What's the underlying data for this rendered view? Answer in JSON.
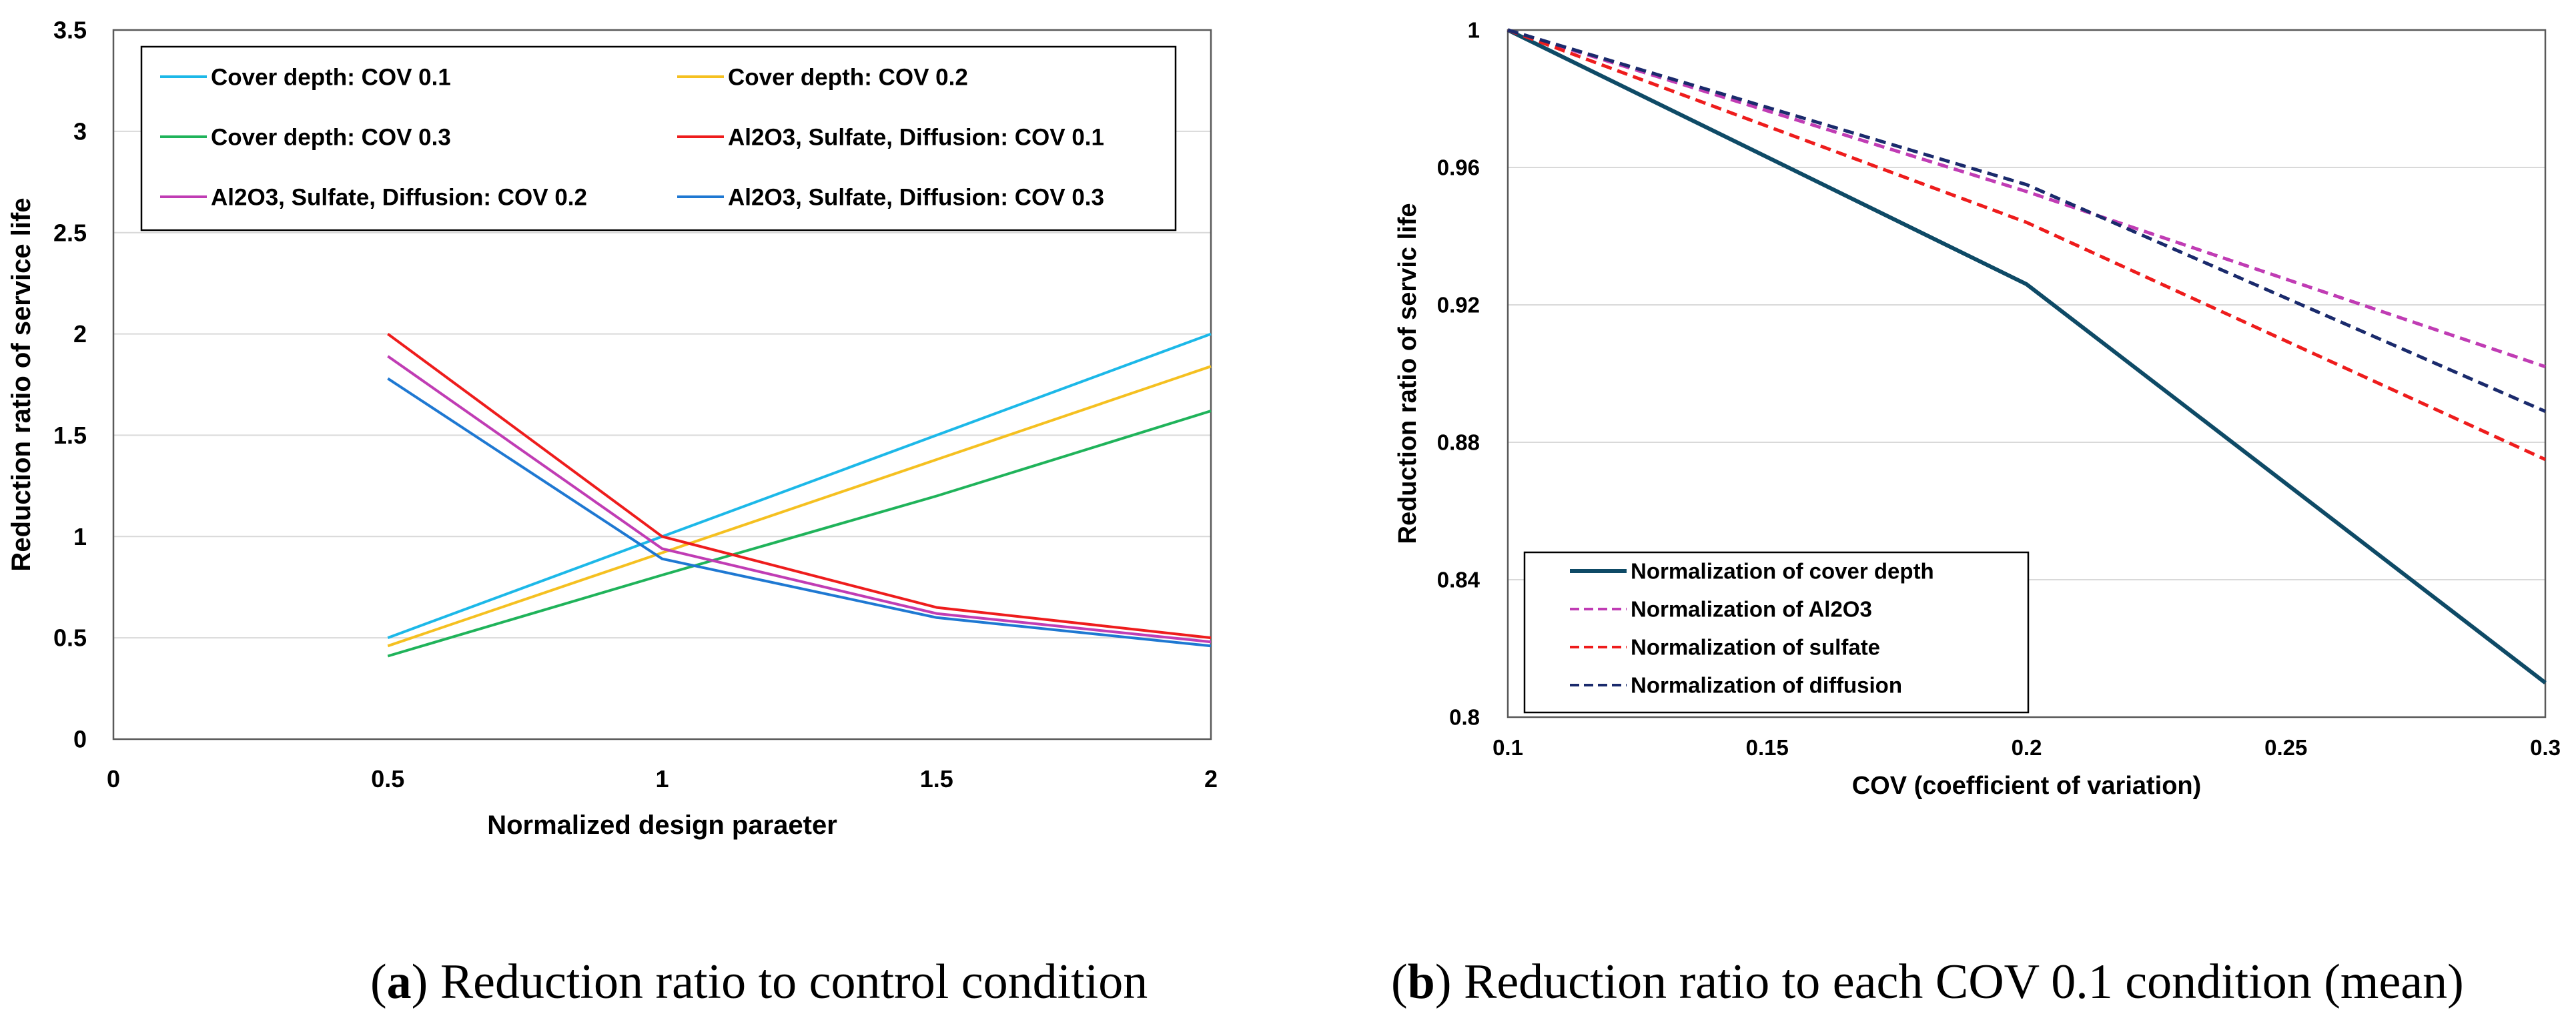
{
  "chart_data": [
    {
      "type": "line",
      "title": "",
      "xlabel": "Normalized design paraeter",
      "ylabel": "Reduction ratio of service life",
      "xlim": [
        0,
        2
      ],
      "ylim": [
        0,
        3.5
      ],
      "x_ticks": [
        "0",
        "0.5",
        "1",
        "1.5",
        "2"
      ],
      "y_ticks": [
        "0",
        "0.5",
        "1",
        "1.5",
        "2",
        "2.5",
        "3",
        "3.5"
      ],
      "grid": "horizontal",
      "legend_position": "top",
      "series": [
        {
          "name": "Cover depth: COV 0.1",
          "color": "#1CB8E8",
          "dash": "solid",
          "x": [
            0.5,
            1,
            1.5,
            2
          ],
          "values": [
            0.5,
            1.0,
            1.5,
            2.0
          ]
        },
        {
          "name": "Cover depth: COV 0.2",
          "color": "#F5C020",
          "dash": "solid",
          "x": [
            0.5,
            1,
            1.5,
            2
          ],
          "values": [
            0.46,
            0.92,
            1.38,
            1.84
          ]
        },
        {
          "name": "Cover depth: COV 0.3",
          "color": "#1FB35A",
          "dash": "solid",
          "x": [
            0.5,
            1,
            1.5,
            2
          ],
          "values": [
            0.41,
            0.81,
            1.2,
            1.62
          ]
        },
        {
          "name": "Al2O3, Sulfate, Diffusion: COV 0.1",
          "color": "#EE1C1C",
          "dash": "solid",
          "x": [
            0.5,
            1,
            1.5,
            2
          ],
          "values": [
            2.0,
            1.0,
            0.65,
            0.5
          ]
        },
        {
          "name": "Al2O3, Sulfate, Diffusion: COV 0.2",
          "color": "#C03CB4",
          "dash": "solid",
          "x": [
            0.5,
            1,
            1.5,
            2
          ],
          "values": [
            1.89,
            0.94,
            0.62,
            0.48
          ]
        },
        {
          "name": "Al2O3, Sulfate, Diffusion: COV 0.3",
          "color": "#1E78D2",
          "dash": "solid",
          "x": [
            0.5,
            1,
            1.5,
            2
          ],
          "values": [
            1.78,
            0.89,
            0.6,
            0.46
          ]
        }
      ]
    },
    {
      "type": "line",
      "title": "",
      "xlabel": "COV (coefficient of variation)",
      "ylabel": "Reduction ratio of servic life",
      "xlim": [
        0.1,
        0.3
      ],
      "ylim": [
        0.8,
        1
      ],
      "x_ticks": [
        "0.1",
        "0.15",
        "0.2",
        "0.25",
        "0.3"
      ],
      "y_ticks": [
        "0.8",
        "0.84",
        "0.88",
        "0.92",
        "0.96",
        "1"
      ],
      "grid": "horizontal",
      "legend_position": "bottom-left",
      "series": [
        {
          "name": "Normalization of cover depth",
          "color": "#0E4A66",
          "dash": "solid",
          "x": [
            0.1,
            0.2,
            0.3
          ],
          "values": [
            1.0,
            0.926,
            0.81
          ]
        },
        {
          "name": "Normalization of Al2O3",
          "color": "#C03CB4",
          "dash": "dashed",
          "x": [
            0.1,
            0.2,
            0.3
          ],
          "values": [
            1.0,
            0.953,
            0.902
          ]
        },
        {
          "name": "Normalization of sulfate",
          "color": "#EE1C1C",
          "dash": "dashed",
          "x": [
            0.1,
            0.2,
            0.3
          ],
          "values": [
            1.0,
            0.944,
            0.875
          ]
        },
        {
          "name": "Normalization of diffusion",
          "color": "#1A2A6C",
          "dash": "dashed",
          "x": [
            0.1,
            0.2,
            0.3
          ],
          "values": [
            1.0,
            0.955,
            0.889
          ]
        }
      ]
    }
  ],
  "captions": {
    "a": {
      "letter": "a",
      "text": " Reduction ratio to control condition"
    },
    "b": {
      "letter": "b",
      "text": " Reduction ratio to each COV 0.1 condition (mean)"
    }
  }
}
